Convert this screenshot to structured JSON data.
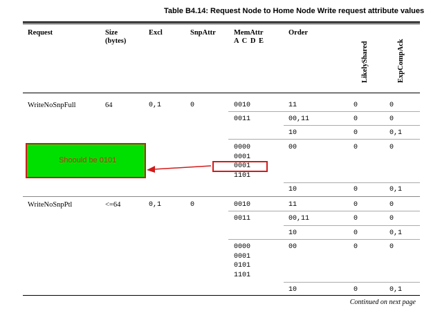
{
  "table": {
    "title": "Table B4.14: Request Node to Home Node Write request attribute values",
    "headers": {
      "request": "Request",
      "size_line1": "Size",
      "size_line2": "(bytes)",
      "excl": "Excl",
      "snpattr": "SnpAttr",
      "memattr_line1": "MemAttr",
      "memattr_line2": "A C D E",
      "order": "Order",
      "likelyshared": "LikelyShared",
      "expcompack": "ExpCompAck"
    },
    "groups": [
      {
        "request": "WriteNoSnpFull",
        "size": "64",
        "excl": "0,1",
        "snpattr": "0",
        "rows": [
          {
            "memattr": "0010",
            "order": "11",
            "likelyshared": "0",
            "expcompack": "0"
          },
          {
            "memattr": "0011",
            "order": "00,11",
            "likelyshared": "0",
            "expcompack": "0"
          },
          {
            "memattr": "",
            "order": "10",
            "likelyshared": "0",
            "expcompack": "0,1"
          },
          {
            "memattr": "0000\n0001\n0001\n1101",
            "order": "00",
            "likelyshared": "0",
            "expcompack": "0"
          },
          {
            "memattr": "",
            "order": "10",
            "likelyshared": "0",
            "expcompack": "0,1"
          }
        ]
      },
      {
        "request": "WriteNoSnpPtl",
        "size": "<=64",
        "excl": "0,1",
        "snpattr": "0",
        "rows": [
          {
            "memattr": "0010",
            "order": "11",
            "likelyshared": "0",
            "expcompack": "0"
          },
          {
            "memattr": "0011",
            "order": "00,11",
            "likelyshared": "0",
            "expcompack": "0"
          },
          {
            "memattr": "",
            "order": "10",
            "likelyshared": "0",
            "expcompack": "0,1"
          },
          {
            "memattr": "0000\n0001\n0101\n1101",
            "order": "00",
            "likelyshared": "0",
            "expcompack": "0"
          },
          {
            "memattr": "",
            "order": "10",
            "likelyshared": "0",
            "expcompack": "0,1"
          }
        ]
      }
    ],
    "footer": "Continued on next page"
  },
  "annotation": {
    "note": "Shoould be 0101",
    "note_color": "#cc2a1a",
    "box_fill": "#00e000",
    "border_color": "#d21a1a"
  }
}
